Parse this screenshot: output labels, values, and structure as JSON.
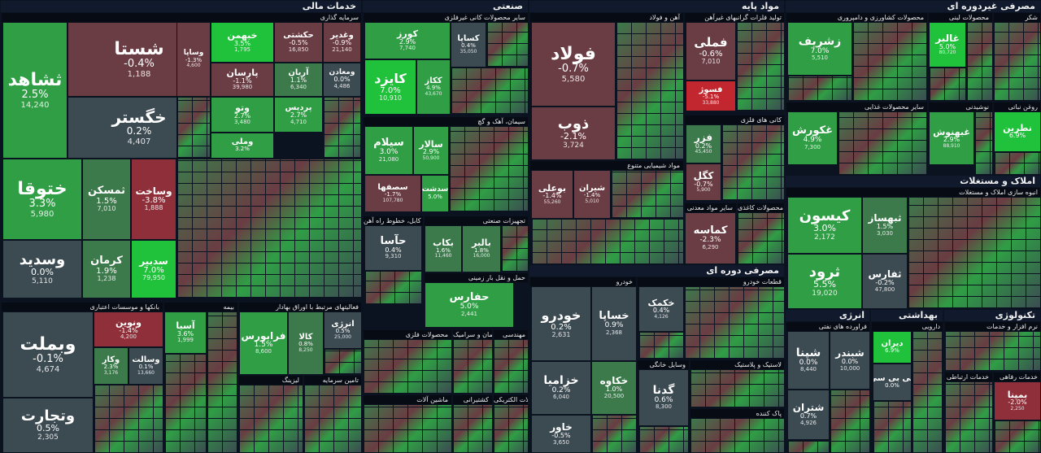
{
  "sectors": [
    {
      "id": "financial",
      "title": "خدمات مالی"
    },
    {
      "id": "industrial",
      "title": "صنعتی"
    },
    {
      "id": "basic",
      "title": "مواد پایه"
    },
    {
      "id": "nondurable",
      "title": "مصرفی غیردوره ای"
    },
    {
      "id": "realestate",
      "title": "املاک و مستغلات"
    },
    {
      "id": "durable",
      "title": "مصرفی دوره ای"
    },
    {
      "id": "energy",
      "title": "انرژی"
    },
    {
      "id": "health",
      "title": "بهداشتی"
    },
    {
      "id": "tech",
      "title": "تکنولوژی"
    }
  ],
  "subsectors": [
    {
      "id": "fin-invest",
      "title": "سرمایه گذاری"
    },
    {
      "id": "fin-banks",
      "title": "بانکها و موسسات اعتباری"
    },
    {
      "id": "fin-insurance",
      "title": "بیمه"
    },
    {
      "id": "fin-exchange",
      "title": "فعالیتهای مرتبط با اوراق بهادار"
    },
    {
      "id": "fin-leasing",
      "title": "لیزینگ"
    },
    {
      "id": "fin-funding",
      "title": "تامین سرمایه"
    },
    {
      "id": "ind-other",
      "title": "سایر محصولات کانی غیرفلزی"
    },
    {
      "id": "ind-cement",
      "title": "سیمان، آهک و گچ"
    },
    {
      "id": "ind-cable",
      "title": "سیم، کابل، خطوط راه آهن"
    },
    {
      "id": "ind-equip",
      "title": "تجهیزات صنعتی"
    },
    {
      "id": "ind-transport",
      "title": "حمل و نقل بار زمینی"
    },
    {
      "id": "ind-metal",
      "title": "محصولات فلزی"
    },
    {
      "id": "ind-ceramic",
      "title": "سیمان و سرامیک"
    },
    {
      "id": "ind-eng",
      "title": "مهندسی"
    },
    {
      "id": "ind-machine",
      "title": "ماشین آلات"
    },
    {
      "id": "ind-shipping",
      "title": "کشتیرانی"
    },
    {
      "id": "ind-electric",
      "title": "آلات الکتریکی"
    },
    {
      "id": "bas-steel",
      "title": "آهن و فولاد"
    },
    {
      "id": "bas-nonferrous",
      "title": "تولید فلزات گرانبهای غیرآهن"
    },
    {
      "id": "bas-chemical",
      "title": "مواد شیمیایی متنوع"
    },
    {
      "id": "bas-minerals",
      "title": "کانی های فلزی"
    },
    {
      "id": "bas-other",
      "title": "سایر مواد معدنی"
    },
    {
      "id": "bas-paper",
      "title": "محصولات کاغذی"
    },
    {
      "id": "non-cosmetic",
      "title": "محصولات کشاورزی و دامپروری"
    },
    {
      "id": "non-dairy",
      "title": "محصولات لبنی"
    },
    {
      "id": "non-sugar",
      "title": "شکر"
    },
    {
      "id": "non-food",
      "title": "سایر محصولات غذایی"
    },
    {
      "id": "non-drinks",
      "title": "نوشیدنی"
    },
    {
      "id": "non-oil",
      "title": "روغن نباتی"
    },
    {
      "id": "re-build",
      "title": "انبوه سازی املاک و مستغلات"
    },
    {
      "id": "dur-auto",
      "title": "خودرو"
    },
    {
      "id": "dur-parts",
      "title": "قطعات خودرو"
    },
    {
      "id": "dur-home",
      "title": "وسایل خانگی"
    },
    {
      "id": "dur-plastic",
      "title": "لاستیک و پلاستیک"
    },
    {
      "id": "dur-textile",
      "title": "پاک کننده"
    },
    {
      "id": "en-refine",
      "title": "فراورده های نفتی"
    },
    {
      "id": "hl-pharma",
      "title": "دارویی"
    },
    {
      "id": "tc-software",
      "title": "نرم افزار و خدمات"
    },
    {
      "id": "tc-telecom",
      "title": "خدمات ارتباطی"
    },
    {
      "id": "tc-welfare",
      "title": "خدمات رفاهی"
    },
    {
      "id": "tc-other",
      "title": "مخابرات"
    }
  ],
  "tiles": [
    {
      "id": "shasta",
      "name": "شستا",
      "pct": "-0.4%",
      "vol": "1,188"
    },
    {
      "id": "shahed",
      "name": "ثشاهد",
      "pct": "2.5%",
      "vol": "14,240"
    },
    {
      "id": "khagostar",
      "name": "خگستر",
      "pct": "0.2%",
      "vol": "4,407"
    },
    {
      "id": "khatoga",
      "name": "ختوقا",
      "pct": "3.3%",
      "vol": "5,980"
    },
    {
      "id": "samakan",
      "name": "ثمسکن",
      "pct": "1.5%",
      "vol": "7,010"
    },
    {
      "id": "sakhet",
      "name": "وساخت",
      "pct": "-3.8%",
      "vol": "1,888"
    },
    {
      "id": "vasadid",
      "name": "وسدید",
      "pct": "0.0%",
      "vol": "5,110"
    },
    {
      "id": "kerman",
      "name": "کرمان",
      "pct": "1.9%",
      "vol": "1,238"
    },
    {
      "id": "sadbir",
      "name": "سدبیر",
      "pct": "7.0%",
      "vol": "79,950"
    },
    {
      "id": "kheban",
      "name": "خبهمن",
      "pct": "3.5%",
      "vol": "1,795"
    },
    {
      "id": "hekmati",
      "name": "حکشتی",
      "pct": "-0.5%",
      "vol": "16,850"
    },
    {
      "id": "vaghadir",
      "name": "وغدیر",
      "pct": "-0.9%",
      "vol": "21,140"
    },
    {
      "id": "parsan",
      "name": "پارسان",
      "pct": "-1.1%",
      "vol": "39,980"
    },
    {
      "id": "arian",
      "name": "آریان",
      "pct": "1.1%",
      "vol": "6,340"
    },
    {
      "id": "vamaaden",
      "name": "ومعادن",
      "pct": "0.0%",
      "vol": "4,486"
    },
    {
      "id": "vasapa",
      "name": "وساپا",
      "pct": "-1.3%",
      "vol": "4,600"
    },
    {
      "id": "vatoo",
      "name": "وتو",
      "pct": "2.7%",
      "vol": "3,480"
    },
    {
      "id": "pardis",
      "name": "پردیس",
      "pct": "2.7%",
      "vol": "4,710"
    },
    {
      "id": "vamelli",
      "name": "وملی",
      "pct": "3.2%",
      "vol": "2,280"
    },
    {
      "id": "vabemelat",
      "name": "وبملت",
      "pct": "-0.1%",
      "vol": "4,674"
    },
    {
      "id": "vatejarat",
      "name": "وتجارت",
      "pct": "0.5%",
      "vol": "2,305"
    },
    {
      "id": "vanovin",
      "name": "ونوین",
      "pct": "-1.4%",
      "vol": "4,200"
    },
    {
      "id": "vakar",
      "name": "وکار",
      "pct": "2.3%",
      "vol": "3,176"
    },
    {
      "id": "vasalat",
      "name": "وسالت",
      "pct": "0.1%",
      "vol": "13,660"
    },
    {
      "id": "asia",
      "name": "آسیا",
      "pct": "3.6%",
      "vol": "1,999"
    },
    {
      "id": "farabourse",
      "name": "فرابورس",
      "pct": "1.5%",
      "vol": "8,600"
    },
    {
      "id": "kala",
      "name": "کالا",
      "pct": "0.8%",
      "vol": "8,250"
    },
    {
      "id": "energy3",
      "name": "انرژی",
      "pct": "0.5%",
      "vol": "25,000"
    },
    {
      "id": "kourz",
      "name": "کورز",
      "pct": "2.9%",
      "vol": "7,740"
    },
    {
      "id": "kasapa",
      "name": "کساپا",
      "pct": "0.4%",
      "vol": "35,050"
    },
    {
      "id": "kaizd",
      "name": "کایزد",
      "pct": "7.0%",
      "vol": "10,910"
    },
    {
      "id": "kegaz",
      "name": "ککاز",
      "pct": "4.9%",
      "vol": "43,670"
    },
    {
      "id": "salam",
      "name": "سیلام",
      "pct": "3.0%",
      "vol": "21,080"
    },
    {
      "id": "salar",
      "name": "سالار",
      "pct": "2.9%",
      "vol": "50,900"
    },
    {
      "id": "sasfaha",
      "name": "سصفها",
      "pct": "-1.7%",
      "vol": "107,780"
    },
    {
      "id": "sadasht",
      "name": "سدشت",
      "pct": "5.0%",
      "vol": ""
    },
    {
      "id": "hasa",
      "name": "حآسا",
      "pct": "0.4%",
      "vol": "9,310"
    },
    {
      "id": "bakab",
      "name": "بکاب",
      "pct": "1.6%",
      "vol": "11,460"
    },
    {
      "id": "balbar",
      "name": "بالبر",
      "pct": "1.8%",
      "vol": "16,000"
    },
    {
      "id": "hafars",
      "name": "حفارس",
      "pct": "5.0%",
      "vol": "2,441"
    },
    {
      "id": "fulad",
      "name": "فولاد",
      "pct": "-0.7%",
      "vol": "5,580"
    },
    {
      "id": "zob",
      "name": "ذوب",
      "pct": "-2.1%",
      "vol": "3,724"
    },
    {
      "id": "fameli",
      "name": "فملی",
      "pct": "-0.6%",
      "vol": "7,010"
    },
    {
      "id": "fasouj",
      "name": "فسوژ",
      "pct": "-5.1%",
      "vol": "33,880"
    },
    {
      "id": "vabooali",
      "name": "بوعلی",
      "pct": "-1.4%",
      "vol": "55,260"
    },
    {
      "id": "shiran",
      "name": "شیران",
      "pct": "-1.4%",
      "vol": "5,010"
    },
    {
      "id": "fazar",
      "name": "فزر",
      "pct": "0.2%",
      "vol": "45,450"
    },
    {
      "id": "kegol",
      "name": "کگل",
      "pct": "-0.7%",
      "vol": "5,900"
    },
    {
      "id": "kamase",
      "name": "کماسه",
      "pct": "-2.3%",
      "vol": "6,290"
    },
    {
      "id": "zashrif",
      "name": "زشریف",
      "pct": "7.0%",
      "vol": "5,510"
    },
    {
      "id": "ghalbar",
      "name": "غالبر",
      "pct": "5.0%",
      "vol": "80,720"
    },
    {
      "id": "ghakorosh",
      "name": "غکورش",
      "pct": "4.9%",
      "vol": "7,300"
    },
    {
      "id": "ghabehnosh",
      "name": "غبهنوش",
      "pct": "2.9%",
      "vol": "88,910"
    },
    {
      "id": "natrin",
      "name": "نطرین",
      "pct": "6.9%",
      "vol": ""
    },
    {
      "id": "kisoun",
      "name": "کیسون",
      "pct": "3.0%",
      "vol": "2,172"
    },
    {
      "id": "sahasaz",
      "name": "ثبهساز",
      "pct": "1.5%",
      "vol": "3,030"
    },
    {
      "id": "sarud",
      "name": "ثرود",
      "pct": "5.5%",
      "vol": "19,020"
    },
    {
      "id": "safars",
      "name": "ثفارس",
      "pct": "-0.2%",
      "vol": "47,800"
    },
    {
      "id": "khodro",
      "name": "خودرو",
      "pct": "0.2%",
      "vol": "2,631"
    },
    {
      "id": "khasapa",
      "name": "خساپا",
      "pct": "0.9%",
      "vol": "2,368"
    },
    {
      "id": "khazamia",
      "name": "خزامیا",
      "pct": "0.2%",
      "vol": "6,040"
    },
    {
      "id": "khakave",
      "name": "خکاوه",
      "pct": "1.0%",
      "vol": "20,500"
    },
    {
      "id": "khavar",
      "name": "خاور",
      "pct": "-0.5%",
      "vol": "3,650"
    },
    {
      "id": "khakmak",
      "name": "خکمک",
      "pct": "0.4%",
      "vol": "4,126"
    },
    {
      "id": "gadena",
      "name": "گدنا",
      "pct": "0.6%",
      "vol": "8,300"
    },
    {
      "id": "shepana",
      "name": "شپنا",
      "pct": "0.0%",
      "vol": "8,440"
    },
    {
      "id": "shebandar",
      "name": "شبندر",
      "pct": "0.0%",
      "vol": "10,000"
    },
    {
      "id": "shetran",
      "name": "شتران",
      "pct": "0.7%",
      "vol": "4,926"
    },
    {
      "id": "dizan",
      "name": "دیران",
      "pct": "6.9%",
      "vol": ""
    },
    {
      "id": "kypisi",
      "name": "کی بی سی",
      "pct": "0.0%",
      "vol": ""
    },
    {
      "id": "bemina",
      "name": "بمپنا",
      "pct": "-2.0%",
      "vol": "2,250"
    }
  ]
}
